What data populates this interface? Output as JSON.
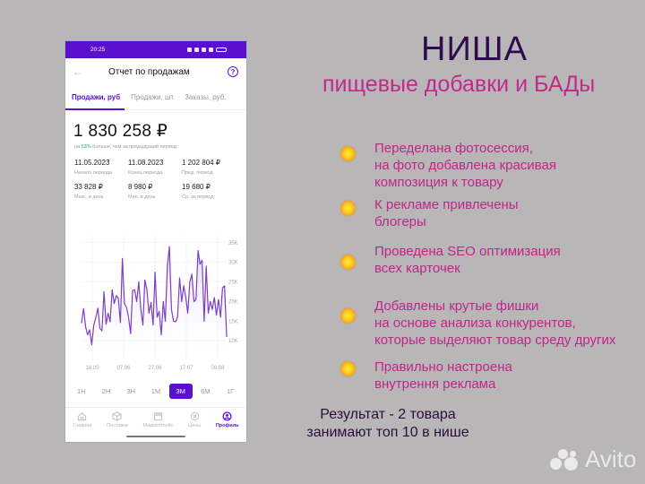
{
  "slide": {
    "title": "НИША",
    "subtitle": "пищевые добавки и БАДы",
    "colors": {
      "background": "#b9b6b8",
      "title": "#2f0a4d",
      "accent": "#c0258a",
      "bullet": "#ffd020"
    },
    "bullets": [
      {
        "text": "Переделана фотосессия,\nна фото добавлена красивая\nкомпозиция к товару"
      },
      {
        "text": "К рекламе привлечены\nблогеры"
      },
      {
        "text": "Проведена SEO оптимизация\nвсех карточек"
      },
      {
        "text": "Добавлены крутые фишки\nна основе анализа конкурентов,\nкоторые выделяют товар среду других"
      },
      {
        "text": "Правильно настроена\nвнутрення реклама"
      }
    ],
    "result": "Результат - 2 товара\nзанимают топ 10 в нише",
    "watermark": "Avito"
  },
  "phone": {
    "status_bar": {
      "time": "20:25"
    },
    "app_bar": {
      "back_icon": "arrow-left-icon",
      "title": "Отчет по продажам",
      "help_icon": "question-circle-icon",
      "help_glyph": "?"
    },
    "tabs": [
      {
        "label": "Продажи, руб",
        "active": true
      },
      {
        "label": "Продажи, шт",
        "active": false
      },
      {
        "label": "Заказы, руб.",
        "active": false
      }
    ],
    "total": "1 830 258 ₽",
    "delta": {
      "prefix": "на ",
      "pct": "53%",
      "suffix": " больше, чем за предыдущий период"
    },
    "stats": [
      {
        "value": "11.05.2023",
        "label": "Начало периода"
      },
      {
        "value": "11.08.2023",
        "label": "Конец периода"
      },
      {
        "value": "1 202 804 ₽",
        "label": "Пред. период"
      },
      {
        "value": "33 828 ₽",
        "label": "Макс. в день"
      },
      {
        "value": "8 980 ₽",
        "label": "Мин. в день"
      },
      {
        "value": "19 680 ₽",
        "label": "Ср. за период"
      }
    ],
    "periods": [
      {
        "label": "1Н",
        "active": false
      },
      {
        "label": "2Н",
        "active": false
      },
      {
        "label": "3Н",
        "active": false
      },
      {
        "label": "1М",
        "active": false
      },
      {
        "label": "3М",
        "active": true
      },
      {
        "label": "6М",
        "active": false
      },
      {
        "label": "1Г",
        "active": false
      }
    ],
    "bottom_nav": [
      {
        "label": "Главная",
        "icon": "home-icon",
        "active": false
      },
      {
        "label": "Поставки",
        "icon": "box-icon",
        "active": false
      },
      {
        "label": "Маркетплейс",
        "icon": "store-icon",
        "active": false
      },
      {
        "label": "Цены",
        "icon": "price-tag-icon",
        "active": false
      },
      {
        "label": "Профиль",
        "icon": "profile-icon",
        "active": true
      }
    ],
    "accent_color": "#5b0fcf"
  },
  "chart_data": {
    "type": "area",
    "title": "",
    "xlabel": "",
    "ylabel": "",
    "x_ticks": [
      "18.05",
      "07.06",
      "27.06",
      "17.07",
      "06.08"
    ],
    "y_ticks": [
      "10K",
      "15K",
      "20K",
      "25K",
      "30K",
      "35K"
    ],
    "ylim": [
      5000,
      37000
    ],
    "grid": true,
    "series": [
      {
        "name": "Продажи, руб",
        "color": "#7b3fc4",
        "values": [
          14500,
          18200,
          13500,
          11500,
          12800,
          9000,
          14000,
          16000,
          18300,
          13200,
          12500,
          22500,
          14200,
          17000,
          14800,
          23000,
          19500,
          21500,
          20800,
          14600,
          31000,
          19500,
          18500,
          16000,
          11800,
          22800,
          23000,
          20000,
          25000,
          18000,
          14000,
          25500,
          23000,
          17000,
          19800,
          14000,
          27500,
          16000,
          17500,
          11500,
          20000,
          15000,
          29000,
          34000,
          18000,
          15000,
          14800,
          16000,
          26000,
          20000,
          24000,
          21000,
          17000,
          25000,
          27000,
          20000,
          20500,
          33000,
          29500,
          30500,
          15000,
          29000,
          17000,
          20000,
          18000,
          21000,
          16500,
          20500,
          16000,
          23500,
          24000,
          11000
        ]
      }
    ]
  }
}
